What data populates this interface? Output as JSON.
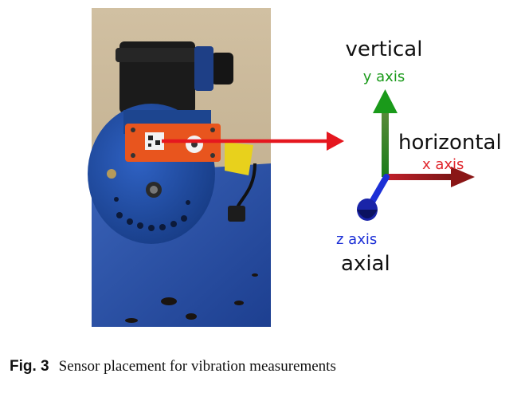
{
  "figure": {
    "labels": {
      "vertical": "vertical",
      "y_axis": "y axis",
      "horizontal": "horizontal",
      "x_axis": "x axis",
      "z_axis": "z axis",
      "axial": "axial"
    },
    "colors": {
      "y_axis": "#1a9a1a",
      "x_axis": "#e0262d",
      "z_axis": "#1c2fd6",
      "arrow": "#e5171f",
      "sensor": "#e8551e",
      "motor": "#1f4aa0",
      "wall": "#c9b79a",
      "floor": "#2a4fa7"
    }
  },
  "caption": {
    "label": "Fig. 3",
    "text": "Sensor placement for vibration measurements"
  }
}
